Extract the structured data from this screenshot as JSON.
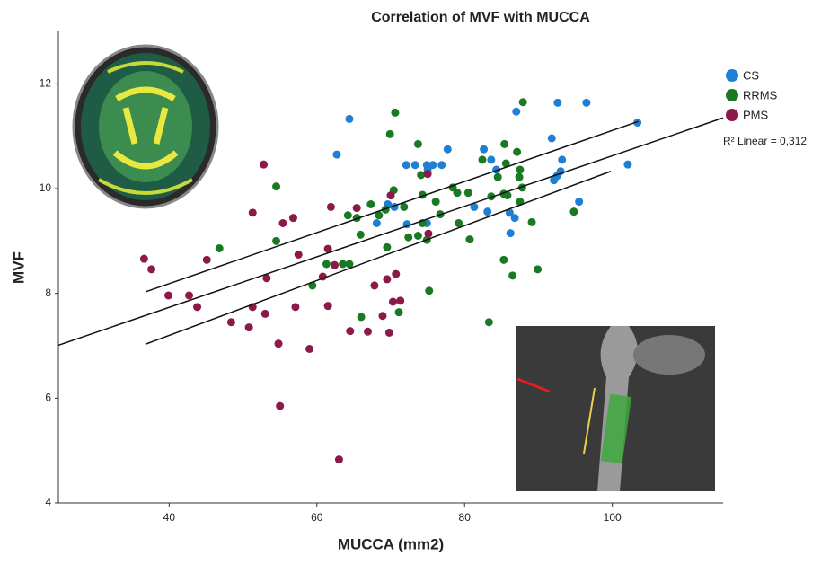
{
  "chart_data": {
    "type": "scatter",
    "title": "Correlation of MVF with MUCCA",
    "x_label": "MUCCA (mm2)",
    "y_label": "MVF",
    "xlim": [
      25,
      115
    ],
    "ylim": [
      4,
      13
    ],
    "xticks": [
      40,
      60,
      80,
      100
    ],
    "yticks": [
      4,
      6,
      8,
      10,
      12
    ],
    "annotation": "R² Linear = 0,312",
    "series": [
      {
        "name": "CS",
        "color": "#1f7fd4",
        "x": [
          64.4,
          62.7,
          72.1,
          73.3,
          74.9,
          75.7,
          76.9,
          77.7,
          75.0,
          69.6,
          68.1,
          72.2,
          74.9,
          70.5,
          81.3,
          82.6,
          83.6,
          84.3,
          83.1,
          86.1,
          87.0,
          92.6,
          96.5,
          91.8,
          93.2,
          93.0,
          92.5,
          92.1,
          95.5,
          102.1,
          103.4,
          86.2,
          86.8
        ],
        "values": [
          11.33,
          10.65,
          10.45,
          10.45,
          10.45,
          10.45,
          10.45,
          10.75,
          10.36,
          9.7,
          9.34,
          9.32,
          9.34,
          9.65,
          9.65,
          10.75,
          10.55,
          10.36,
          9.56,
          9.54,
          11.47,
          11.64,
          11.64,
          10.96,
          10.55,
          10.33,
          10.24,
          10.16,
          9.75,
          10.46,
          11.26,
          9.15,
          9.44
        ]
      },
      {
        "name": "RRMS",
        "color": "#1a7a24",
        "x": [
          87.9,
          85.4,
          87.1,
          85.6,
          87.5,
          87.4,
          82.4,
          84.5,
          85.3,
          87.8,
          85.8,
          87.5,
          89.1,
          89.9,
          86.5,
          85.3,
          83.3,
          80.7,
          78.4,
          79.0,
          80.5,
          79.2,
          76.7,
          76.1,
          74.3,
          73.7,
          74.1,
          74.3,
          74.9,
          75.2,
          73.7,
          72.4,
          70.6,
          69.9,
          70.4,
          69.3,
          68.4,
          67.3,
          65.4,
          64.2,
          65.9,
          64.4,
          63.5,
          61.3,
          59.4,
          54.5,
          54.5,
          46.8,
          69.5,
          71.1,
          66.0,
          71.8,
          83.6,
          94.8
        ],
        "values": [
          11.65,
          10.85,
          10.7,
          10.48,
          10.36,
          10.22,
          10.55,
          10.22,
          9.9,
          10.02,
          9.87,
          9.75,
          9.36,
          8.46,
          8.34,
          8.64,
          7.45,
          9.03,
          10.02,
          9.92,
          9.92,
          9.34,
          9.51,
          9.75,
          9.88,
          10.85,
          10.26,
          9.34,
          9.02,
          8.05,
          9.1,
          9.07,
          11.45,
          11.04,
          9.97,
          9.6,
          9.49,
          9.7,
          9.44,
          9.49,
          9.12,
          8.56,
          8.56,
          8.56,
          8.15,
          10.04,
          9.0,
          8.86,
          8.88,
          7.64,
          7.55,
          9.65,
          9.85,
          9.56
        ]
      },
      {
        "name": "PMS",
        "color": "#8b1a4a",
        "x": [
          36.6,
          37.6,
          39.9,
          42.7,
          45.1,
          43.8,
          48.4,
          50.8,
          51.3,
          53.0,
          52.8,
          51.3,
          53.2,
          55.4,
          56.8,
          57.5,
          57.1,
          54.8,
          55.0,
          59.0,
          60.8,
          61.5,
          61.5,
          62.4,
          61.9,
          63.0,
          64.5,
          65.4,
          66.9,
          67.8,
          68.9,
          69.5,
          70.0,
          70.3,
          70.7,
          69.8,
          71.3,
          75.0,
          75.1
        ],
        "values": [
          8.66,
          8.46,
          7.96,
          7.96,
          8.64,
          7.74,
          7.45,
          7.35,
          7.74,
          7.61,
          10.46,
          9.54,
          8.29,
          9.34,
          9.44,
          8.74,
          7.74,
          7.04,
          5.85,
          6.94,
          8.32,
          8.85,
          7.76,
          8.54,
          9.65,
          4.83,
          7.28,
          9.63,
          7.27,
          8.15,
          7.57,
          8.27,
          9.87,
          7.84,
          8.37,
          7.25,
          7.86,
          10.28,
          9.14
        ]
      }
    ],
    "lines": [
      {
        "x": [
          25,
          115
        ],
        "y": [
          7.01,
          11.35
        ]
      },
      {
        "x": [
          36.8,
          103.5
        ],
        "y": [
          8.03,
          11.28
        ]
      },
      {
        "x": [
          36.8,
          99.8
        ],
        "y": [
          7.03,
          10.33
        ]
      }
    ]
  }
}
